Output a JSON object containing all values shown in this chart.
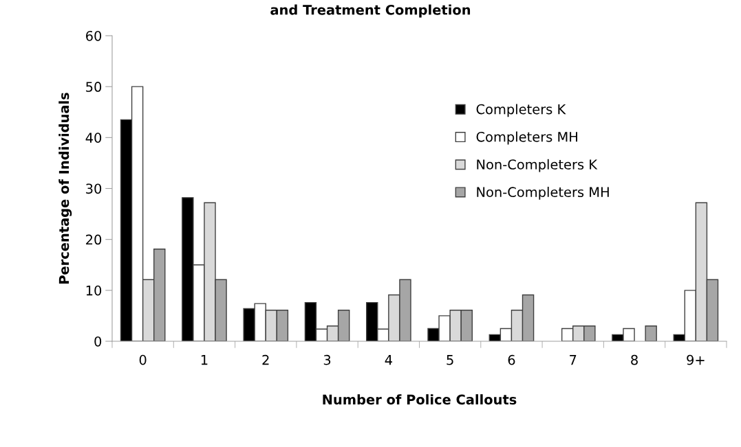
{
  "chart_data": {
    "type": "bar",
    "title": "and Treatment Completion",
    "xlabel": "Number of Police Callouts",
    "ylabel": "Percentage of Individuals",
    "categories": [
      "0",
      "1",
      "2",
      "3",
      "4",
      "5",
      "6",
      "7",
      "8",
      "9+"
    ],
    "series": [
      {
        "name": "Completers K",
        "color": "#000000",
        "values": [
          43.5,
          28.2,
          6.4,
          7.6,
          7.6,
          2.5,
          1.3,
          0,
          1.3,
          1.3
        ]
      },
      {
        "name": "Completers MH",
        "color": "#ffffff",
        "values": [
          50,
          15,
          7.4,
          2.4,
          2.4,
          5,
          2.5,
          2.5,
          2.5,
          10
        ]
      },
      {
        "name": "Non-Completers K",
        "color": "#d9d9d9",
        "values": [
          12.1,
          27.2,
          6.1,
          3,
          9.1,
          6.1,
          6.1,
          3,
          0,
          27.2
        ]
      },
      {
        "name": "Non-Completers MH",
        "color": "#a6a6a6",
        "values": [
          18.1,
          12.1,
          6.1,
          6.1,
          12.1,
          6.1,
          9.1,
          3,
          3,
          12.1
        ]
      }
    ],
    "ylim": [
      0,
      60
    ],
    "yticks": [
      0,
      10,
      20,
      30,
      40,
      50,
      60
    ],
    "grid": false,
    "legend": "right"
  }
}
